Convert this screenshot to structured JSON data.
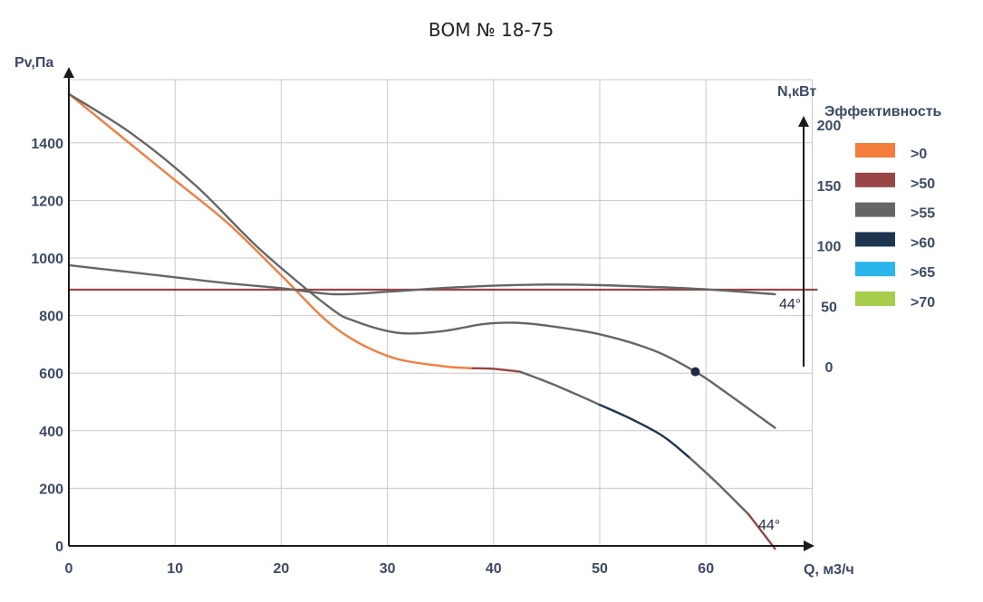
{
  "chart_data": {
    "type": "line",
    "title": "ВОМ № 18-75",
    "xlabel": "Q, м3/ч",
    "ylabel": "Pv,Па",
    "y2label": "N,кВт",
    "xlim": [
      0,
      70
    ],
    "ylim": [
      0,
      1600
    ],
    "y2lim": [
      0,
      200
    ],
    "x_ticks": [
      0,
      10,
      20,
      30,
      40,
      50,
      60
    ],
    "y_ticks": [
      0,
      200,
      400,
      600,
      800,
      1000,
      1200,
      1400
    ],
    "y2_ticks": [
      0,
      50,
      100,
      150,
      200
    ],
    "grid": true,
    "legend": {
      "title": "Эффективность",
      "position": "right",
      "entries": [
        {
          "label": ">0",
          "color": "#f47c3c"
        },
        {
          "label": ">50",
          "color": "#9a4545"
        },
        {
          "label": ">55",
          "color": "#666666"
        },
        {
          "label": ">60",
          "color": "#1e3550"
        },
        {
          "label": ">65",
          "color": "#2bb5ea"
        },
        {
          "label": ">70",
          "color": "#a8cd4c"
        }
      ]
    },
    "series": [
      {
        "name": "pressure curve 44°",
        "axis": "left",
        "segments": [
          {
            "efficiency": ">0",
            "color": "#f47c3c",
            "points": [
              [
                0,
                1570
              ],
              [
                5,
                1420
              ],
              [
                10,
                1270
              ],
              [
                15,
                1120
              ],
              [
                20,
                940
              ],
              [
                25,
                760
              ],
              [
                30,
                660
              ],
              [
                35,
                625
              ],
              [
                38,
                617
              ]
            ]
          },
          {
            "efficiency": ">50",
            "color": "#9a4545",
            "points": [
              [
                38,
                617
              ],
              [
                40,
                615
              ],
              [
                42.5,
                605
              ]
            ]
          },
          {
            "efficiency": ">55",
            "color": "#666666",
            "points": [
              [
                42.5,
                605
              ],
              [
                46,
                555
              ],
              [
                50,
                490
              ]
            ]
          },
          {
            "efficiency": ">60",
            "color": "#1e3550",
            "points": [
              [
                50,
                490
              ],
              [
                53,
                440
              ],
              [
                56,
                380
              ],
              [
                58.5,
                305
              ]
            ]
          },
          {
            "efficiency": ">55",
            "color": "#666666",
            "points": [
              [
                58.5,
                305
              ],
              [
                61,
                220
              ],
              [
                64,
                110
              ]
            ]
          },
          {
            "efficiency": ">50",
            "color": "#9a4545",
            "points": [
              [
                64,
                110
              ],
              [
                66.5,
                -10
              ]
            ]
          }
        ]
      },
      {
        "name": "upper grey curve",
        "axis": "left",
        "segments": [
          {
            "efficiency": ">55",
            "color": "#666666",
            "points": [
              [
                0,
                1570
              ],
              [
                6,
                1430
              ],
              [
                12,
                1250
              ],
              [
                18,
                1030
              ],
              [
                24.5,
                830
              ],
              [
                27,
                780
              ],
              [
                31,
                740
              ],
              [
                35,
                745
              ],
              [
                39,
                770
              ],
              [
                42,
                775
              ],
              [
                45,
                765
              ],
              [
                50,
                735
              ],
              [
                55,
                680
              ],
              [
                59,
                605
              ],
              [
                62,
                530
              ],
              [
                66.5,
                410
              ]
            ]
          }
        ]
      },
      {
        "name": "power curve 44°",
        "axis": "right",
        "color": "#666666",
        "points": [
          [
            0,
            84
          ],
          [
            5,
            79
          ],
          [
            10,
            74
          ],
          [
            15,
            69
          ],
          [
            20,
            65
          ],
          [
            25,
            60
          ],
          [
            30,
            62
          ],
          [
            35,
            65
          ],
          [
            40,
            67
          ],
          [
            45,
            68
          ],
          [
            50,
            67.5
          ],
          [
            55,
            66
          ],
          [
            60,
            64
          ],
          [
            66.5,
            60
          ]
        ]
      },
      {
        "name": "reference line",
        "axis": "left",
        "color": "#9a4545",
        "points": [
          [
            0,
            890
          ],
          [
            70,
            890
          ]
        ]
      }
    ],
    "markers": [
      {
        "label": "operating point",
        "x": 59,
        "y": 605,
        "color": "#1e2a44"
      }
    ],
    "annotations": [
      {
        "text": "44°",
        "attach": "power curve end",
        "x": 66.5,
        "y": 810
      },
      {
        "text": "44°",
        "attach": "pressure curve end",
        "x": 66.5,
        "y": 60
      }
    ]
  }
}
